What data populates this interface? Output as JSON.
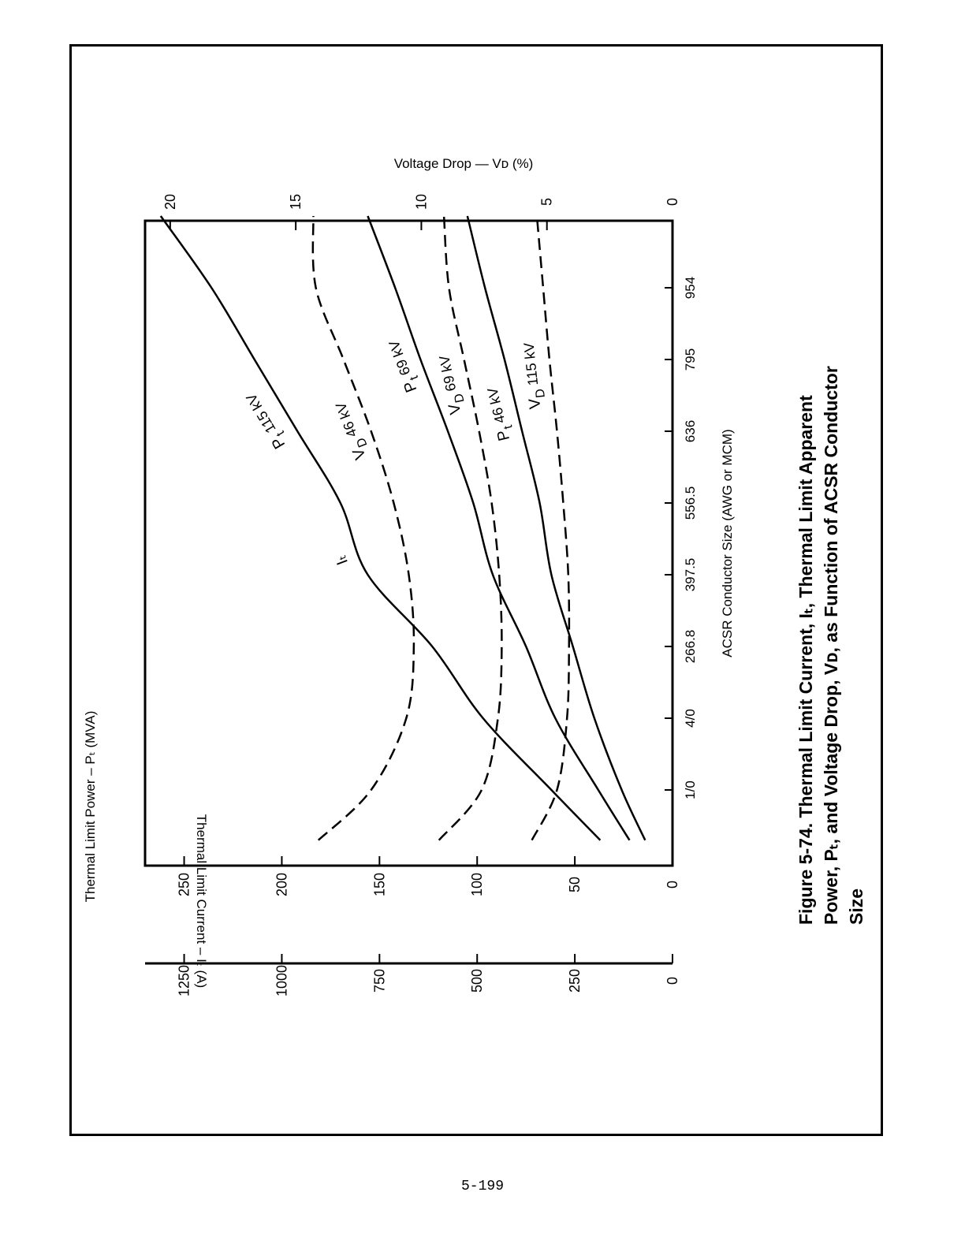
{
  "page": {
    "number": "5-199"
  },
  "caption": {
    "line1": "Figure 5-74.  Thermal Limit Current, Iₜ, Thermal Limit Apparent",
    "line2": "Power, Pₜ, and Voltage Drop, Vᴅ, as Function of ACSR Conductor",
    "line3": "Size"
  },
  "chart_data": {
    "type": "line",
    "xlabel": "ACSR Conductor Size (AWG or MCM)",
    "categories": [
      "1/0",
      "4/0",
      "266.8",
      "397.5",
      "556.5",
      "636",
      "795",
      "954"
    ],
    "ylabels": {
      "power": "Thermal Limit Power – Pₜ (MVA)",
      "current": "Thermal Limit Current – Iₜ (A)",
      "voltage_drop": "Voltage Drop — Vᴅ (%)"
    },
    "ylim_power": [
      0,
      270
    ],
    "ylim_current": [
      0,
      1350
    ],
    "ylim_voltage_drop": [
      0,
      21
    ],
    "power_ticks": [
      "0",
      "50",
      "100",
      "150",
      "200",
      "250"
    ],
    "current_ticks": [
      "0",
      "250",
      "500",
      "750",
      "1000",
      "1250"
    ],
    "voltage_ticks": [
      "0",
      "5",
      "10",
      "15",
      "20"
    ],
    "series": [
      {
        "name": "Pₜ 115 kV",
        "label_main": "P",
        "label_sub": "t",
        "label_rest": " 115 kV",
        "extra_label": "Iₜ",
        "axis": "power",
        "style": "solid",
        "x": [
          0.3,
          1,
          2,
          3,
          4,
          5,
          6,
          7,
          8,
          9
        ],
        "y": [
          37,
          62,
          97,
          123,
          156,
          170,
          192,
          214,
          236,
          262
        ]
      },
      {
        "name": "Pₜ 69 kV",
        "label_main": "P",
        "label_sub": "t",
        "label_rest": " 69 kV",
        "axis": "power",
        "style": "solid",
        "x": [
          0.3,
          1,
          2,
          3,
          4,
          5,
          6,
          7,
          8,
          9
        ],
        "y": [
          22,
          38,
          60,
          75,
          92,
          102,
          115,
          129,
          142,
          156
        ]
      },
      {
        "name": "Pₜ 46 kV",
        "label_main": "P",
        "label_sub": "t",
        "label_rest": " 46 kV",
        "axis": "power",
        "style": "solid",
        "x": [
          0.3,
          1,
          2,
          3,
          4,
          5,
          6,
          7,
          8,
          9
        ],
        "y": [
          14,
          26,
          40,
          51,
          62,
          68,
          77,
          86,
          96,
          105
        ]
      },
      {
        "name": "Vᴅ 46 kV",
        "label_main": "V",
        "label_sub": "D",
        "label_rest": " 46 kV",
        "axis": "voltage_drop",
        "style": "dashed",
        "x": [
          0.3,
          1,
          2,
          3,
          4,
          5,
          6,
          7,
          8,
          9
        ],
        "y": [
          14.1,
          12.0,
          10.6,
          10.3,
          10.5,
          11.1,
          12.0,
          13.1,
          14.2,
          14.3
        ]
      },
      {
        "name": "Vᴅ 69 kV",
        "label_main": "V",
        "label_sub": "D",
        "label_rest": " 69 kV",
        "axis": "voltage_drop",
        "style": "dashed",
        "x": [
          0.3,
          1,
          2,
          3,
          4,
          5,
          6,
          7,
          8,
          9
        ],
        "y": [
          9.3,
          7.6,
          6.95,
          6.8,
          6.9,
          7.2,
          7.7,
          8.3,
          8.9,
          9.1
        ]
      },
      {
        "name": "Vᴅ 115 kV",
        "label_main": "V",
        "label_sub": "D",
        "label_rest": " 115 kV",
        "axis": "voltage_drop",
        "style": "dashed",
        "x": [
          0.3,
          1,
          2,
          3,
          4,
          5,
          6,
          7,
          8,
          9
        ],
        "y": [
          5.6,
          4.6,
          4.2,
          4.12,
          4.15,
          4.35,
          4.6,
          4.9,
          5.15,
          5.4
        ]
      }
    ]
  }
}
